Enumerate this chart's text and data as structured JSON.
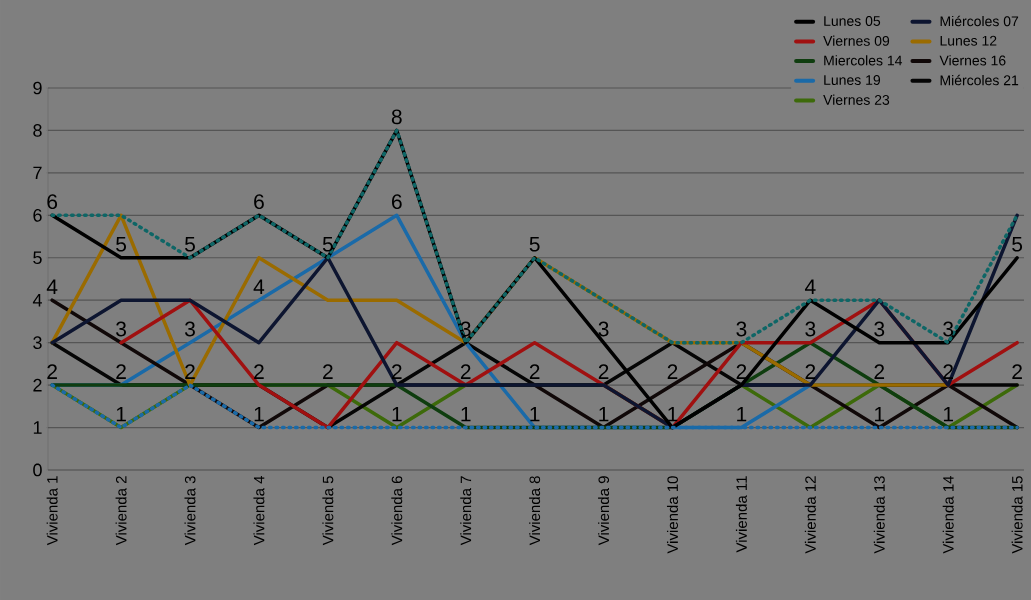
{
  "chart_data": {
    "type": "line",
    "categories": [
      "Vivienda 1",
      "Vivienda 2",
      "Vivienda 3",
      "Vivienda 4",
      "Vivienda 5",
      "Vivienda 6",
      "Vivienda 7",
      "Vivienda 8",
      "Vivienda 9",
      "Vivienda 10",
      "Vivienda 11",
      "Vivienda 12",
      "Vivienda 13",
      "Vivienda 14",
      "Vivienda 15"
    ],
    "series": [
      {
        "name": "Lunes 05",
        "color": "#000000",
        "values": [
          6,
          5,
          5,
          6,
          5,
          8,
          3,
          5,
          3,
          1,
          2,
          4,
          3,
          3,
          5
        ]
      },
      {
        "name": "Miércoles 07",
        "color": "#0d1530",
        "values": [
          3,
          4,
          4,
          3,
          5,
          2,
          2,
          2,
          2,
          1,
          2,
          2,
          4,
          2,
          6
        ]
      },
      {
        "name": "Viernes 09",
        "color": "#a01010",
        "values": [
          null,
          3,
          4,
          2,
          1,
          3,
          2,
          3,
          2,
          1,
          3,
          3,
          4,
          2,
          3
        ]
      },
      {
        "name": "Lunes 12",
        "color": "#9a6b00",
        "values": [
          3,
          6,
          2,
          5,
          4,
          4,
          3,
          5,
          4,
          3,
          3,
          2,
          2,
          2,
          null
        ]
      },
      {
        "name": "Miercoles 14",
        "color": "#0f3d0f",
        "values": [
          2,
          2,
          2,
          2,
          2,
          2,
          1,
          1,
          1,
          1,
          2,
          3,
          2,
          1,
          1
        ]
      },
      {
        "name": "Viernes 16",
        "color": "#100808",
        "values": [
          4,
          3,
          2,
          1,
          2,
          2,
          2,
          2,
          1,
          2,
          3,
          2,
          1,
          2,
          1
        ]
      },
      {
        "name": "Lunes 19",
        "color": "#1a6aa8",
        "values": [
          2,
          2,
          3,
          4,
          5,
          6,
          3,
          1,
          1,
          1,
          1,
          2,
          2,
          null,
          null
        ]
      },
      {
        "name": "Miércoles 21",
        "color": "#050505",
        "values": [
          3,
          2,
          2,
          2,
          1,
          2,
          3,
          2,
          2,
          3,
          2,
          2,
          2,
          2,
          2
        ]
      },
      {
        "name": "Viernes 23",
        "color": "#3d6a0a",
        "values": [
          2,
          1,
          2,
          2,
          2,
          1,
          2,
          2,
          2,
          1,
          2,
          1,
          2,
          1,
          2
        ]
      },
      {
        "color": "#0e6666",
        "line_style": "dotted",
        "values": [
          6,
          6,
          5,
          6,
          5,
          8,
          3,
          5,
          4,
          3,
          3,
          4,
          4,
          3,
          6
        ]
      },
      {
        "color": "#1a6aa8",
        "line_style": "dotted",
        "values": [
          2,
          1,
          2,
          1,
          1,
          1,
          1,
          1,
          1,
          1,
          1,
          1,
          1,
          1,
          1
        ]
      }
    ],
    "ylim": [
      0,
      9
    ],
    "yticks": [
      0,
      1,
      2,
      3,
      4,
      5,
      6,
      7,
      8,
      9
    ],
    "grid": "y",
    "legend": "top right",
    "marker": "none",
    "annotations": [
      {
        "text": "6",
        "x": "Vivienda 1",
        "y": 6
      },
      {
        "text": "4",
        "x": "Vivienda 1",
        "y": 4
      },
      {
        "text": "2",
        "x": "Vivienda 1",
        "y": 2
      },
      {
        "text": "5",
        "x": "Vivienda 2",
        "y": 5
      },
      {
        "text": "3",
        "x": "Vivienda 2",
        "y": 3
      },
      {
        "text": "2",
        "x": "Vivienda 2",
        "y": 2
      },
      {
        "text": "1",
        "x": "Vivienda 2",
        "y": 1
      },
      {
        "text": "5",
        "x": "Vivienda 3",
        "y": 5
      },
      {
        "text": "3",
        "x": "Vivienda 3",
        "y": 3
      },
      {
        "text": "2",
        "x": "Vivienda 3",
        "y": 2
      },
      {
        "text": "6",
        "x": "Vivienda 4",
        "y": 6
      },
      {
        "text": "4",
        "x": "Vivienda 4",
        "y": 4
      },
      {
        "text": "2",
        "x": "Vivienda 4",
        "y": 2
      },
      {
        "text": "1",
        "x": "Vivienda 4",
        "y": 1
      },
      {
        "text": "5",
        "x": "Vivienda 5",
        "y": 5
      },
      {
        "text": "2",
        "x": "Vivienda 5",
        "y": 2
      },
      {
        "text": "8",
        "x": "Vivienda 6",
        "y": 8
      },
      {
        "text": "6",
        "x": "Vivienda 6",
        "y": 6
      },
      {
        "text": "2",
        "x": "Vivienda 6",
        "y": 2
      },
      {
        "text": "1",
        "x": "Vivienda 6",
        "y": 1
      },
      {
        "text": "3",
        "x": "Vivienda 7",
        "y": 3
      },
      {
        "text": "2",
        "x": "Vivienda 7",
        "y": 2
      },
      {
        "text": "1",
        "x": "Vivienda 7",
        "y": 1
      },
      {
        "text": "5",
        "x": "Vivienda 8",
        "y": 5
      },
      {
        "text": "2",
        "x": "Vivienda 8",
        "y": 2
      },
      {
        "text": "1",
        "x": "Vivienda 8",
        "y": 1
      },
      {
        "text": "3",
        "x": "Vivienda 9",
        "y": 3
      },
      {
        "text": "2",
        "x": "Vivienda 9",
        "y": 2
      },
      {
        "text": "1",
        "x": "Vivienda 9",
        "y": 1
      },
      {
        "text": "2",
        "x": "Vivienda 10",
        "y": 2
      },
      {
        "text": "1",
        "x": "Vivienda 10",
        "y": 1
      },
      {
        "text": "3",
        "x": "Vivienda 11",
        "y": 3
      },
      {
        "text": "2",
        "x": "Vivienda 11",
        "y": 2
      },
      {
        "text": "1",
        "x": "Vivienda 11",
        "y": 1
      },
      {
        "text": "4",
        "x": "Vivienda 12",
        "y": 4
      },
      {
        "text": "3",
        "x": "Vivienda 12",
        "y": 3
      },
      {
        "text": "2",
        "x": "Vivienda 12",
        "y": 2
      },
      {
        "text": "3",
        "x": "Vivienda 13",
        "y": 3
      },
      {
        "text": "2",
        "x": "Vivienda 13",
        "y": 2
      },
      {
        "text": "1",
        "x": "Vivienda 13",
        "y": 1
      },
      {
        "text": "3",
        "x": "Vivienda 14",
        "y": 3
      },
      {
        "text": "2",
        "x": "Vivienda 14",
        "y": 2
      },
      {
        "text": "1",
        "x": "Vivienda 14",
        "y": 1
      },
      {
        "text": "5",
        "x": "Vivienda 15",
        "y": 5
      },
      {
        "text": "2",
        "x": "Vivienda 15",
        "y": 2
      }
    ]
  }
}
